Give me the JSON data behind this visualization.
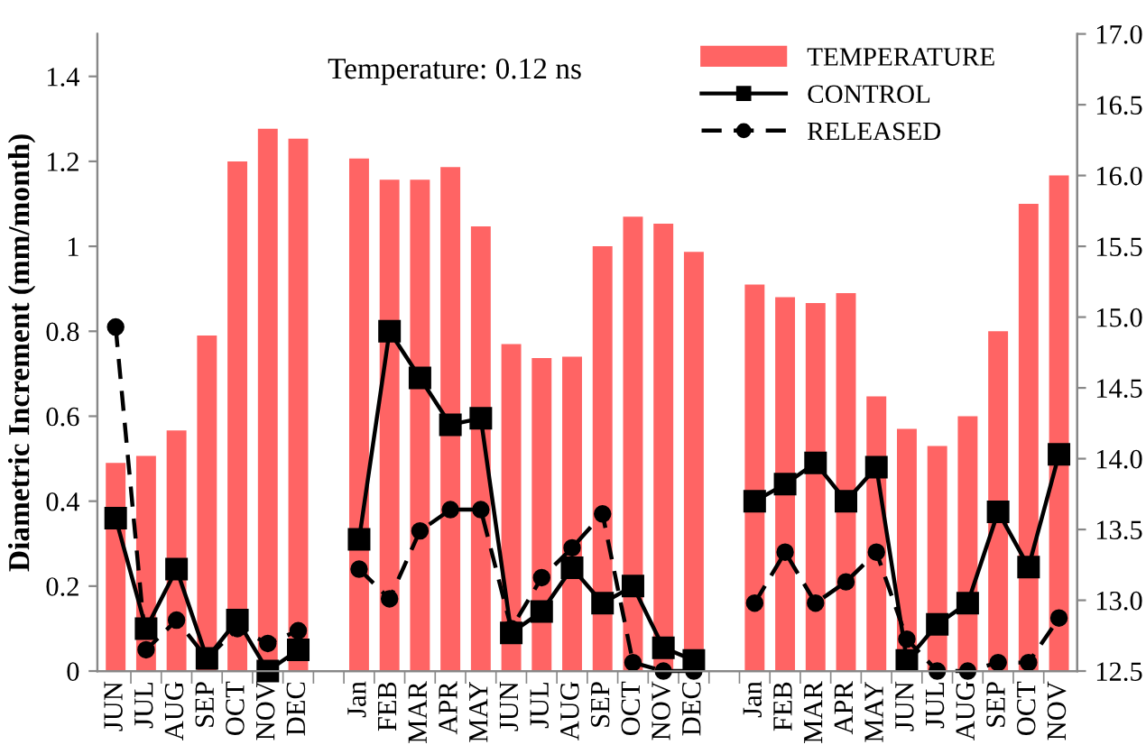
{
  "chart_data": {
    "type": "bar",
    "categories": [
      "JUN",
      "JUL",
      "AUG",
      "SEP",
      "OCT",
      "NOV",
      "DEC",
      null,
      "Jan",
      "FEB",
      "MAR",
      "APR",
      "MAY",
      "JUN",
      "JUL",
      "AUG",
      "SEP",
      "OCT",
      "NOV",
      "DEC",
      null,
      "Jan",
      "FEB",
      "MAR",
      "APR",
      "MAY",
      "JUN",
      "JUL",
      "AUG",
      "SEP",
      "OCT",
      "NOV"
    ],
    "series": [
      {
        "name": "TEMPERATURE",
        "axis": "y2",
        "color": "#ff6464",
        "values": [
          13.97,
          14.02,
          14.2,
          14.87,
          16.1,
          16.33,
          16.26,
          null,
          16.12,
          15.97,
          15.97,
          16.06,
          15.64,
          14.81,
          14.71,
          14.72,
          15.5,
          15.71,
          15.66,
          15.46,
          null,
          15.23,
          15.14,
          15.1,
          15.17,
          14.44,
          14.21,
          14.09,
          14.3,
          14.9,
          15.8,
          16.0
        ]
      },
      {
        "name": "CONTROL",
        "type": "line",
        "color": "#000000",
        "marker": "square",
        "line_style": "solid",
        "values": [
          0.36,
          0.1,
          0.24,
          0.03,
          0.12,
          0,
          0.05,
          null,
          0.31,
          0.8,
          0.69,
          0.58,
          0.595,
          0.09,
          0.14,
          0.243,
          0.16,
          0.2,
          0.055,
          0.025,
          null,
          0.4,
          0.44,
          0.49,
          0.4,
          0.48,
          0.025,
          0.11,
          0.16,
          0.375,
          0.245,
          0.51
        ]
      },
      {
        "name": "RELEASED",
        "type": "line",
        "color": "#000000",
        "marker": "circle",
        "line_style": "dashed",
        "values": [
          0.81,
          0.05,
          0.12,
          0.03,
          0.1,
          0.065,
          0.095,
          null,
          0.24,
          0.17,
          0.33,
          0.38,
          0.38,
          0.1,
          0.22,
          0.29,
          0.37,
          0.02,
          0,
          0,
          null,
          0.16,
          0.28,
          0.16,
          0.21,
          0.28,
          0.075,
          0,
          0,
          0.02,
          0.02,
          0.125
        ]
      }
    ],
    "ylabel": "Diametric Increment (mm/month)",
    "ylim": [
      0,
      1.5
    ],
    "yticks": [
      0,
      0.2,
      0.4,
      0.6,
      0.8,
      1,
      1.2,
      1.4
    ],
    "y2lim": [
      12.5,
      17.0
    ],
    "y2ticks": [
      {
        "value": 12.5,
        "label": "12.5"
      },
      {
        "value": 13,
        "label": "13.0"
      },
      {
        "value": 13.5,
        "label": "13.5"
      },
      {
        "value": 14,
        "label": "14.0"
      },
      {
        "value": 14.5,
        "label": "14.5"
      },
      {
        "value": 15,
        "label": "15.0"
      },
      {
        "value": 15.5,
        "label": "15.5"
      },
      {
        "value": 16,
        "label": "16.0"
      },
      {
        "value": 16.5,
        "label": "16.5"
      },
      {
        "value": 17,
        "label": "17.0"
      }
    ],
    "annotations": [
      "Temperature: 0.12 ns"
    ],
    "legend": "top right",
    "grid": false
  }
}
